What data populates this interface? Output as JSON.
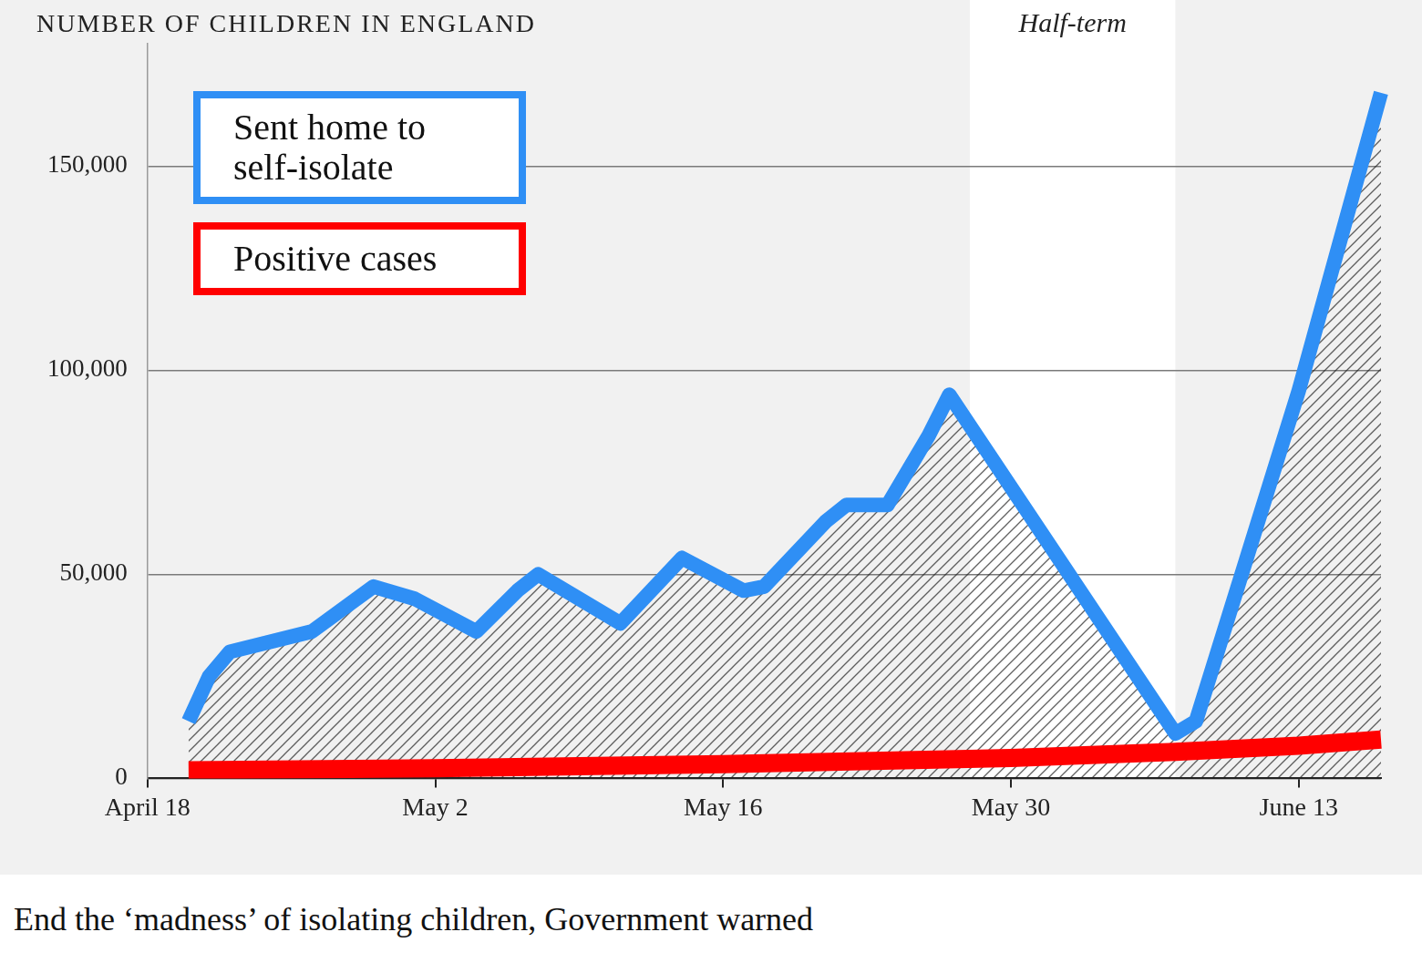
{
  "chart_data": {
    "type": "line",
    "title": "NUMBER OF CHILDREN IN ENGLAND",
    "caption": "End the ‘madness’ of isolating children, Government warned",
    "categories": [
      "April 18",
      null,
      null,
      null,
      null,
      null,
      null,
      null,
      null,
      null,
      null,
      null,
      null,
      null,
      "May 2",
      null,
      null,
      null,
      null,
      null,
      null,
      null,
      null,
      null,
      null,
      null,
      null,
      null,
      "May 16",
      null,
      null,
      null,
      null,
      null,
      null,
      null,
      null,
      null,
      null,
      null,
      null,
      null,
      "May 30",
      null,
      null,
      null,
      null,
      null,
      null,
      null,
      null,
      null,
      null,
      null,
      null,
      null,
      "June 13",
      null,
      null,
      null,
      null
    ],
    "series": [
      {
        "name": "Sent home to self-isolate",
        "color": "#2f8ff5",
        "line_style": "solid",
        "values": [
          null,
          null,
          14000,
          25000,
          31000,
          null,
          null,
          null,
          36000,
          null,
          null,
          47000,
          null,
          44000,
          null,
          null,
          36000,
          null,
          46000,
          50000,
          null,
          null,
          null,
          38000,
          null,
          null,
          54000,
          null,
          null,
          46000,
          47000,
          null,
          null,
          63000,
          67000,
          null,
          67000,
          null,
          84000,
          94000,
          null,
          null,
          null,
          null,
          null,
          null,
          null,
          null,
          null,
          null,
          11000,
          14000,
          null,
          null,
          null,
          null,
          95000,
          null,
          null,
          null,
          168000
        ]
      },
      {
        "name": "Positive cases",
        "color": "#ff0000",
        "line_style": "solid",
        "values": [
          null,
          null,
          2000,
          null,
          null,
          null,
          null,
          null,
          null,
          null,
          null,
          null,
          null,
          null,
          2500,
          null,
          null,
          null,
          null,
          null,
          null,
          null,
          null,
          null,
          null,
          null,
          null,
          null,
          3500,
          null,
          null,
          null,
          null,
          null,
          null,
          null,
          null,
          null,
          null,
          null,
          null,
          null,
          5000,
          null,
          null,
          null,
          null,
          null,
          null,
          null,
          6500,
          null,
          null,
          null,
          null,
          null,
          8000,
          null,
          null,
          null,
          9500
        ]
      }
    ],
    "annotations": [
      {
        "text": "Half-term",
        "span": [
          40,
          50
        ]
      }
    ],
    "ylim": [
      0,
      180000
    ],
    "yticks": [
      0,
      {
        "value": 50000,
        "label": "50,000"
      },
      {
        "value": 100000,
        "label": "100,000"
      },
      {
        "value": 150000,
        "label": "150,000"
      }
    ],
    "grid": true,
    "legend": "upper left"
  }
}
